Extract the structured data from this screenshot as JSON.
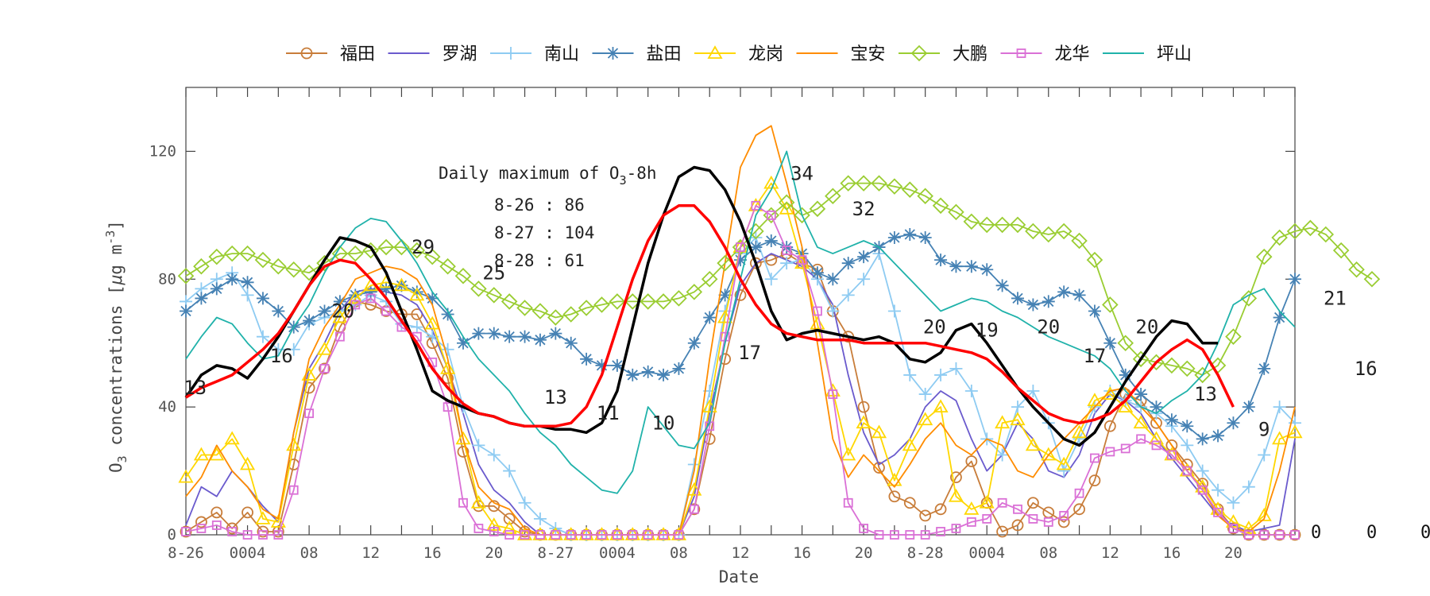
{
  "chart_data": {
    "type": "line",
    "xlabel": "Date",
    "ylabel": "O3 concentrations [μg m-3]",
    "ylabel_parts": {
      "pre": "O",
      "sub": "3",
      "mid": " concentrations [",
      "mu": "μ",
      "unit": "g m",
      "sup": "-3",
      "end": "]"
    },
    "ylim": [
      0,
      140
    ],
    "xlim": [
      0,
      72
    ],
    "grid": false,
    "legend_position": "top",
    "y_ticks": [
      0,
      40,
      80,
      120
    ],
    "x_ticks": [
      {
        "x": 0,
        "label": "8-26"
      },
      {
        "x": 4,
        "label": "0004"
      },
      {
        "x": 8,
        "label": "08"
      },
      {
        "x": 12,
        "label": "12"
      },
      {
        "x": 16,
        "label": "16"
      },
      {
        "x": 20,
        "label": "20"
      },
      {
        "x": 24,
        "label": "8-27"
      },
      {
        "x": 28,
        "label": "0004"
      },
      {
        "x": 32,
        "label": "08"
      },
      {
        "x": 36,
        "label": "12"
      },
      {
        "x": 40,
        "label": "16"
      },
      {
        "x": 44,
        "label": "20"
      },
      {
        "x": 48,
        "label": "8-28"
      },
      {
        "x": 52,
        "label": "0004"
      },
      {
        "x": 56,
        "label": "08"
      },
      {
        "x": 60,
        "label": "12"
      },
      {
        "x": 64,
        "label": "16"
      },
      {
        "x": 68,
        "label": "20"
      }
    ],
    "x_tick_positions": [
      0,
      2,
      4,
      6,
      8,
      10,
      12,
      14,
      16,
      18,
      20,
      22,
      24,
      26,
      28,
      30,
      32,
      34,
      36,
      38,
      40,
      42,
      44,
      46,
      48,
      50,
      52,
      54,
      56,
      58,
      60,
      62,
      64,
      66,
      68,
      70,
      72
    ],
    "annotation": {
      "title": "Daily maximum of O",
      "title_sub": "3",
      "title_end": "-8h",
      "lines": [
        "8-26 : 86",
        "8-27 : 104",
        "8-28 : 61"
      ]
    },
    "right_edge_labels": [
      "0",
      "0",
      "0"
    ],
    "series": [
      {
        "name": "福田",
        "color": "#c87d3a",
        "marker": "circle",
        "values": [
          1,
          4,
          7,
          2,
          7,
          1,
          1,
          22,
          46,
          52,
          65,
          73,
          72,
          70,
          69,
          69,
          60,
          49,
          26,
          9,
          9,
          5,
          1,
          0,
          0,
          0,
          0,
          0,
          0,
          0,
          0,
          0,
          0,
          8,
          30,
          55,
          75,
          85,
          86,
          88,
          85,
          83,
          70,
          62,
          40,
          21,
          12,
          10,
          6,
          8,
          18,
          23,
          10,
          1,
          3,
          10,
          7,
          4,
          8,
          17,
          34,
          44,
          42,
          35,
          28,
          22,
          16,
          8,
          2,
          0,
          0,
          0,
          0
        ]
      },
      {
        "name": "罗湖",
        "color": "#6a5acd",
        "marker": "none",
        "values": [
          3,
          15,
          12,
          20,
          15,
          9,
          4,
          32,
          52,
          60,
          70,
          76,
          77,
          76,
          75,
          72,
          64,
          52,
          38,
          22,
          14,
          10,
          4,
          0,
          0,
          0,
          0,
          0,
          0,
          0,
          0,
          0,
          0,
          12,
          38,
          60,
          78,
          85,
          88,
          86,
          84,
          80,
          72,
          50,
          32,
          22,
          25,
          30,
          40,
          45,
          42,
          30,
          20,
          25,
          35,
          30,
          20,
          18,
          25,
          38,
          44,
          42,
          38,
          30,
          24,
          18,
          12,
          6,
          3,
          1,
          2,
          3,
          30
        ]
      },
      {
        "name": "南山",
        "color": "#8ecbf2",
        "marker": "plus",
        "values": [
          73,
          77,
          80,
          82,
          75,
          62,
          58,
          58,
          66,
          68,
          70,
          72,
          75,
          73,
          66,
          65,
          62,
          58,
          40,
          28,
          25,
          20,
          10,
          5,
          2,
          0,
          0,
          0,
          0,
          0,
          0,
          0,
          0,
          22,
          45,
          70,
          88,
          93,
          80,
          85,
          86,
          80,
          70,
          75,
          80,
          88,
          70,
          50,
          44,
          50,
          52,
          45,
          30,
          25,
          40,
          45,
          35,
          20,
          30,
          40,
          45,
          42,
          40,
          38,
          34,
          28,
          20,
          14,
          10,
          15,
          25,
          40,
          35
        ]
      },
      {
        "name": "盐田",
        "color": "#4682b4",
        "marker": "star",
        "values": [
          70,
          74,
          77,
          80,
          79,
          74,
          70,
          65,
          67,
          70,
          73,
          75,
          76,
          77,
          78,
          76,
          74,
          69,
          60,
          63,
          63,
          62,
          62,
          61,
          63,
          60,
          55,
          53,
          53,
          50,
          51,
          50,
          52,
          60,
          68,
          75,
          86,
          90,
          92,
          90,
          88,
          82,
          80,
          85,
          87,
          90,
          93,
          94,
          93,
          86,
          84,
          84,
          83,
          78,
          74,
          72,
          73,
          76,
          75,
          70,
          60,
          50,
          44,
          40,
          36,
          34,
          30,
          31,
          35,
          40,
          52,
          68,
          80
        ]
      },
      {
        "name": "龙岗",
        "color": "#ffd700",
        "marker": "triangle",
        "values": [
          18,
          25,
          25,
          30,
          22,
          5,
          4,
          28,
          50,
          58,
          68,
          74,
          78,
          79,
          78,
          75,
          66,
          52,
          30,
          10,
          3,
          2,
          0,
          0,
          0,
          0,
          0,
          0,
          0,
          0,
          0,
          0,
          0,
          14,
          40,
          68,
          90,
          103,
          110,
          102,
          85,
          66,
          45,
          25,
          35,
          32,
          17,
          28,
          36,
          40,
          12,
          8,
          10,
          35,
          36,
          28,
          25,
          22,
          32,
          42,
          44,
          40,
          35,
          30,
          25,
          20,
          15,
          8,
          4,
          2,
          6,
          30,
          32
        ]
      },
      {
        "name": "宝安",
        "color": "#ff8c00",
        "marker": "none",
        "values": [
          12,
          18,
          28,
          20,
          15,
          8,
          5,
          32,
          55,
          65,
          72,
          80,
          82,
          84,
          83,
          80,
          72,
          55,
          30,
          15,
          10,
          8,
          2,
          0,
          0,
          0,
          0,
          0,
          0,
          0,
          0,
          0,
          0,
          20,
          55,
          85,
          115,
          125,
          128,
          110,
          90,
          60,
          30,
          18,
          25,
          20,
          15,
          22,
          30,
          35,
          28,
          25,
          30,
          28,
          20,
          18,
          25,
          30,
          35,
          40,
          45,
          46,
          40,
          35,
          28,
          20,
          14,
          6,
          2,
          1,
          5,
          20,
          40
        ]
      },
      {
        "name": "大鹏",
        "color": "#9acd32",
        "marker": "diamond",
        "values": [
          81,
          84,
          87,
          88,
          88,
          86,
          84,
          83,
          82,
          85,
          88,
          88,
          89,
          90,
          90,
          89,
          87,
          84,
          81,
          77,
          75,
          73,
          71,
          70,
          68,
          69,
          71,
          72,
          73,
          73,
          73,
          73,
          74,
          76,
          80,
          85,
          90,
          95,
          100,
          104,
          100,
          102,
          106,
          110,
          110,
          110,
          109,
          108,
          106,
          103,
          101,
          98,
          97,
          97,
          97,
          95,
          94,
          95,
          92,
          86,
          72,
          60,
          55,
          54,
          53,
          52,
          50,
          53,
          62,
          74,
          87,
          93,
          95,
          96,
          94,
          89,
          83,
          80
        ]
      },
      {
        "name": "龙华",
        "color": "#da70d6",
        "marker": "square",
        "values": [
          1,
          2,
          3,
          1,
          0,
          0,
          0,
          14,
          38,
          52,
          62,
          72,
          74,
          70,
          65,
          62,
          54,
          40,
          10,
          2,
          1,
          0,
          0,
          0,
          0,
          0,
          0,
          0,
          0,
          0,
          0,
          0,
          0,
          8,
          34,
          62,
          90,
          103,
          100,
          89,
          86,
          70,
          44,
          10,
          2,
          0,
          0,
          0,
          0,
          1,
          2,
          4,
          5,
          10,
          8,
          5,
          4,
          6,
          13,
          24,
          26,
          27,
          30,
          28,
          25,
          20,
          14,
          7,
          2,
          0,
          0,
          0,
          0
        ]
      },
      {
        "name": "坪山",
        "color": "#20b2aa",
        "marker": "none",
        "values": [
          55,
          62,
          68,
          66,
          60,
          55,
          56,
          65,
          72,
          82,
          90,
          96,
          99,
          98,
          92,
          85,
          76,
          70,
          62,
          55,
          50,
          45,
          38,
          32,
          28,
          22,
          18,
          14,
          13,
          20,
          40,
          34,
          28,
          27,
          35,
          60,
          80,
          100,
          108,
          120,
          100,
          90,
          88,
          90,
          92,
          90,
          85,
          80,
          75,
          70,
          72,
          74,
          73,
          70,
          68,
          65,
          62,
          60,
          58,
          56,
          52,
          45,
          40,
          38,
          42,
          45,
          50,
          60,
          72,
          75,
          77,
          70,
          65
        ]
      },
      {
        "name": "",
        "color": "#000000",
        "marker": "none",
        "width": 3.5,
        "values": [
          43,
          50,
          53,
          52,
          49,
          55,
          62,
          70,
          78,
          86,
          93,
          92,
          90,
          82,
          70,
          58,
          45,
          42,
          40,
          38,
          37,
          35,
          34,
          34,
          33,
          33,
          32,
          35,
          45,
          65,
          85,
          100,
          112,
          115,
          114,
          108,
          98,
          85,
          70,
          61,
          63,
          64,
          63,
          62,
          61,
          62,
          60,
          55,
          54,
          57,
          64,
          66,
          60,
          53,
          46,
          40,
          35,
          30,
          28,
          32,
          40,
          48,
          55,
          62,
          67,
          66,
          60,
          60
        ]
      },
      {
        "name": "",
        "color": "#ff0000",
        "marker": "none",
        "width": 3.5,
        "values": [
          43,
          46,
          48,
          50,
          54,
          58,
          63,
          70,
          78,
          84,
          86,
          85,
          80,
          74,
          67,
          60,
          52,
          46,
          41,
          38,
          37,
          35,
          34,
          34,
          34,
          35,
          40,
          50,
          65,
          80,
          92,
          100,
          103,
          103,
          98,
          90,
          80,
          72,
          66,
          63,
          62,
          61,
          61,
          61,
          60,
          60,
          60,
          60,
          60,
          59,
          58,
          57,
          55,
          51,
          46,
          42,
          38,
          36,
          35,
          36,
          38,
          42,
          48,
          54,
          58,
          61,
          58,
          50,
          40
        ]
      }
    ],
    "data_labels": [
      {
        "x": 0.6,
        "y": 44,
        "text": "13"
      },
      {
        "x": 6.2,
        "y": 54,
        "text": "16"
      },
      {
        "x": 10.2,
        "y": 68,
        "text": "20"
      },
      {
        "x": 15.4,
        "y": 88,
        "text": "29"
      },
      {
        "x": 20.0,
        "y": 80,
        "text": "25"
      },
      {
        "x": 24.0,
        "y": 41,
        "text": "13"
      },
      {
        "x": 27.4,
        "y": 36,
        "text": "11"
      },
      {
        "x": 31.0,
        "y": 33,
        "text": "10"
      },
      {
        "x": 36.6,
        "y": 55,
        "text": "17"
      },
      {
        "x": 40.0,
        "y": 111,
        "text": "34"
      },
      {
        "x": 44.0,
        "y": 100,
        "text": "32"
      },
      {
        "x": 48.6,
        "y": 63,
        "text": "20"
      },
      {
        "x": 52.0,
        "y": 62,
        "text": "19"
      },
      {
        "x": 56.0,
        "y": 63,
        "text": "20"
      },
      {
        "x": 59.0,
        "y": 54,
        "text": "17"
      },
      {
        "x": 62.4,
        "y": 63,
        "text": "20"
      },
      {
        "x": 66.2,
        "y": 42,
        "text": "13"
      },
      {
        "x": 70.0,
        "y": 31,
        "text": "9"
      },
      {
        "x": 74.6,
        "y": 72,
        "text": "21"
      },
      {
        "x": 76.6,
        "y": 50,
        "text": "16"
      }
    ]
  }
}
